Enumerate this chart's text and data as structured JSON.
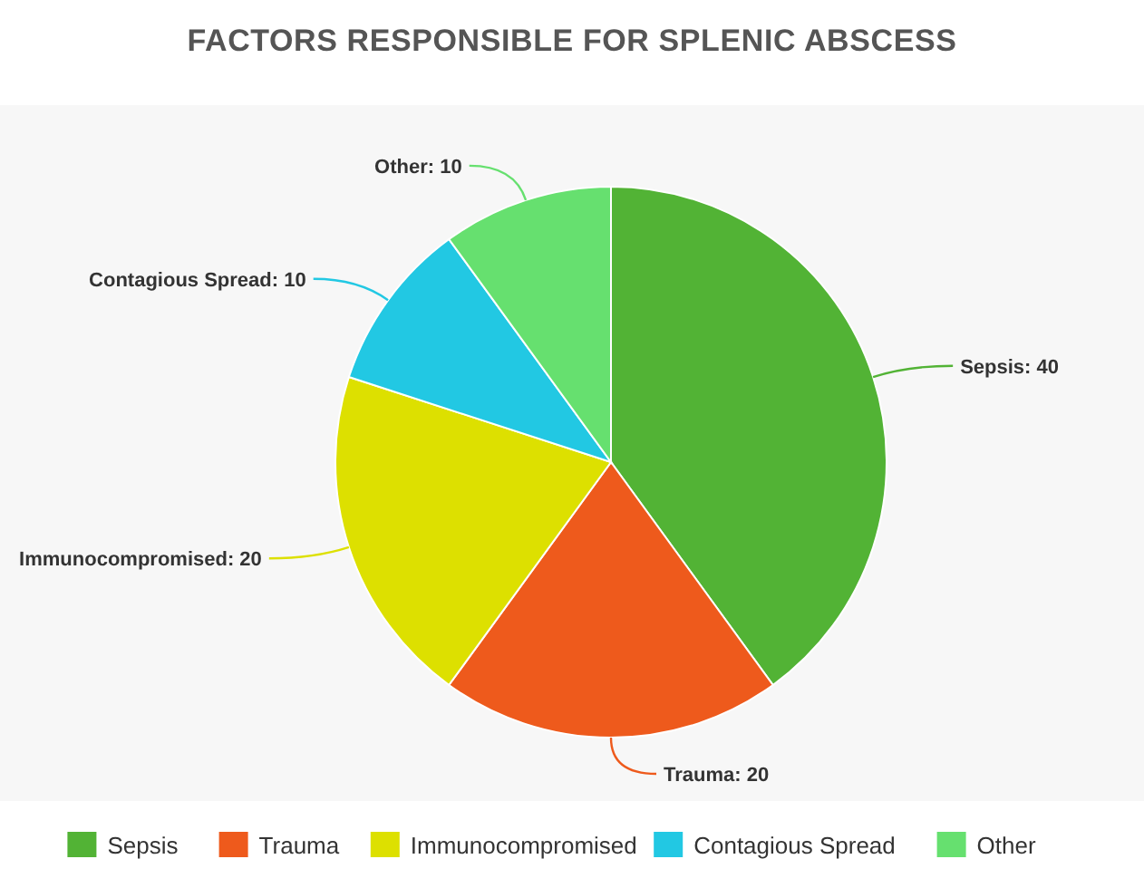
{
  "chart_data": {
    "type": "pie",
    "title": "FACTORS RESPONSIBLE FOR SPLENIC ABSCESS",
    "categories": [
      "Sepsis",
      "Trauma",
      "Immunocompromised",
      "Contagious Spread",
      "Other"
    ],
    "values": [
      40,
      20,
      20,
      10,
      10
    ],
    "value_labels": [
      "Sepsis: 40",
      "Trauma: 20",
      "Immunocompromised: 20",
      "Contagious Spread: 10",
      "Other: 10"
    ],
    "colors": [
      "#52b335",
      "#ee5a1c",
      "#dde000",
      "#22c8e3",
      "#66e06f"
    ],
    "legend": "bottom"
  }
}
